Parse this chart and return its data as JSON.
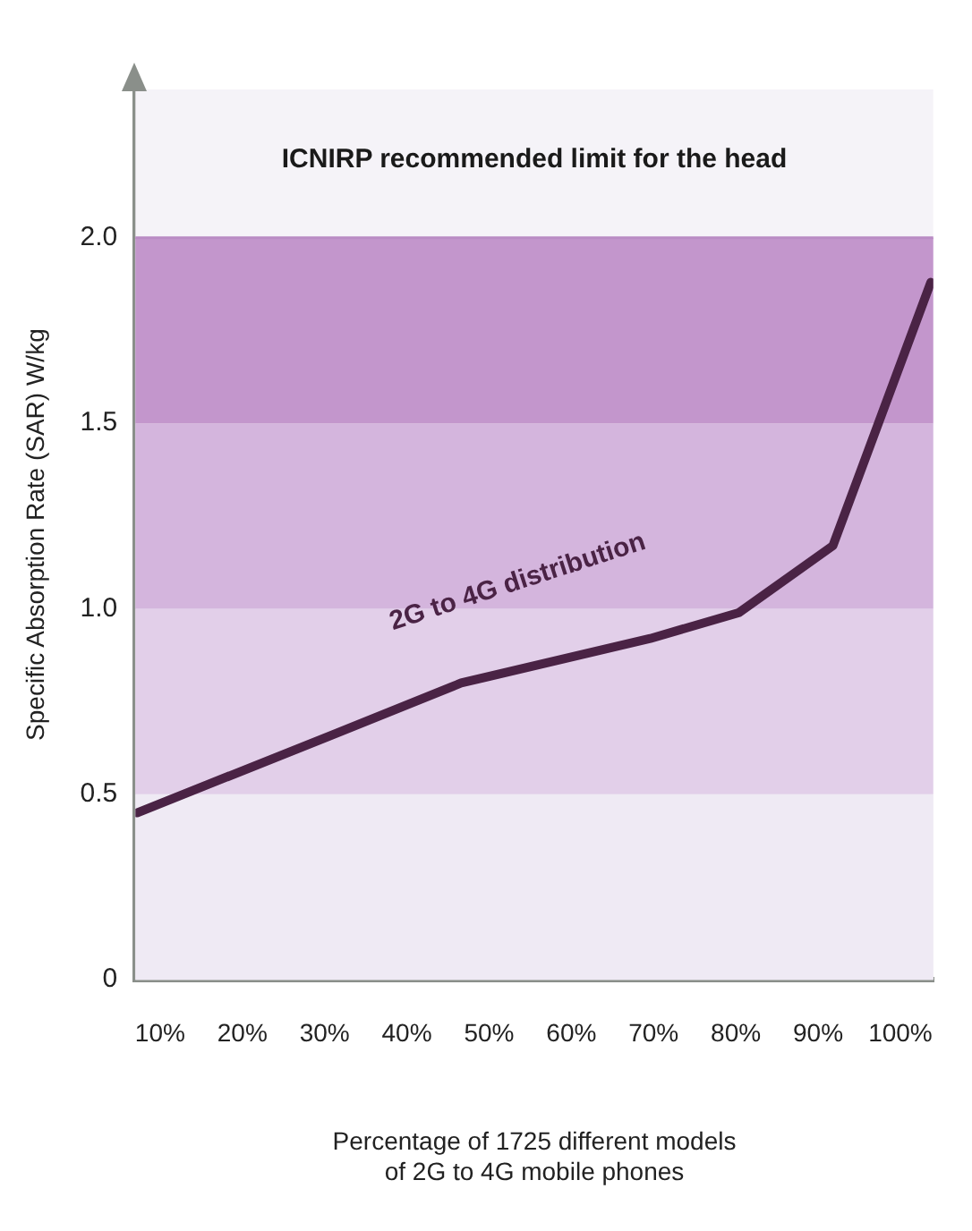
{
  "chart_data": {
    "type": "line",
    "xlabel": "Percentage of 1725 different models\nof 2G to 4G mobile phones",
    "ylabel": "Specific Absorption Rate (SAR) W/kg",
    "xlim": [
      7,
      104
    ],
    "ylim": [
      0,
      2.4
    ],
    "xticks": [
      {
        "value": 10,
        "label": "10%"
      },
      {
        "value": 20,
        "label": "20%"
      },
      {
        "value": 30,
        "label": "30%"
      },
      {
        "value": 40,
        "label": "40%"
      },
      {
        "value": 50,
        "label": "50%"
      },
      {
        "value": 60,
        "label": "60%"
      },
      {
        "value": 70,
        "label": "70%"
      },
      {
        "value": 80,
        "label": "80%"
      },
      {
        "value": 90,
        "label": "90%"
      },
      {
        "value": 100,
        "label": "100%"
      }
    ],
    "yticks": [
      0,
      {
        "value": 0.5,
        "label": "0.5"
      },
      {
        "value": 1,
        "label": "1.0"
      },
      {
        "value": 1.5,
        "label": "1.5"
      },
      {
        "value": 2,
        "label": "2.0"
      }
    ],
    "series": [
      {
        "name": "2G to 4G distribution",
        "color": "#4a2345",
        "x": [
          7.2,
          30.9,
          46.6,
          69.6,
          80.4,
          91.8,
          103.7
        ],
        "values": [
          0.45,
          0.66,
          0.8,
          0.92,
          0.99,
          1.17,
          1.88
        ]
      }
    ],
    "bands": [
      {
        "axis": "y",
        "from": 0,
        "to": 0.5,
        "color": "#efeaf4"
      },
      {
        "axis": "y",
        "from": 0.5,
        "to": 1,
        "color": "#e2cfe9"
      },
      {
        "axis": "y",
        "from": 1,
        "to": 1.5,
        "color": "#d4b5dd"
      },
      {
        "axis": "y",
        "from": 1.5,
        "to": 2,
        "color": "#c396cc"
      }
    ],
    "ref_lines": [
      {
        "axis": "y",
        "value": 2,
        "label": "ICNIRP recommended limit for the head",
        "color": "#b98bc4"
      }
    ],
    "legend": false,
    "marker": "none",
    "line_style": "solid"
  }
}
